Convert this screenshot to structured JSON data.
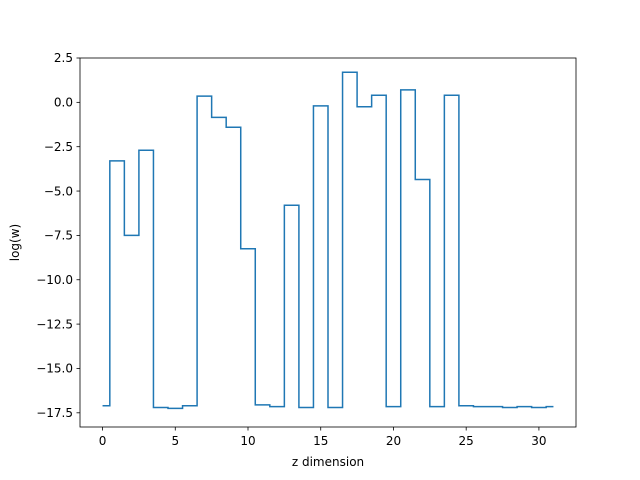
{
  "chart_data": {
    "type": "line",
    "drawstyle": "steps-mid",
    "title": "",
    "xlabel": "z dimension",
    "ylabel": "log(w)",
    "xlim": [
      -1.55,
      32.55
    ],
    "ylim": [
      -18.3,
      2.5
    ],
    "xticks": [
      0,
      5,
      10,
      15,
      20,
      25,
      30
    ],
    "xtick_labels": [
      "0",
      "5",
      "10",
      "15",
      "20",
      "25",
      "30"
    ],
    "yticks": [
      2.5,
      0.0,
      -2.5,
      -5.0,
      -7.5,
      -10.0,
      -12.5,
      -15.0,
      -17.5
    ],
    "ytick_labels": [
      "2.5",
      "0.0",
      "−2.5",
      "−5.0",
      "−7.5",
      "−10.0",
      "−12.5",
      "−15.0",
      "−17.5"
    ],
    "grid": false,
    "legend": "none",
    "series": [
      {
        "color": "#1f77b4",
        "x": [
          0,
          1,
          2,
          3,
          4,
          5,
          6,
          7,
          8,
          9,
          10,
          11,
          12,
          13,
          14,
          15,
          16,
          17,
          18,
          19,
          20,
          21,
          22,
          23,
          24,
          25,
          26,
          27,
          28,
          29,
          30,
          31
        ],
        "values": [
          -17.1,
          -3.3,
          -7.5,
          -2.7,
          -17.2,
          -17.25,
          -17.1,
          0.35,
          -0.85,
          -1.4,
          -8.25,
          -17.05,
          -17.15,
          -5.8,
          -17.2,
          -0.2,
          -17.2,
          1.7,
          -0.25,
          0.4,
          -17.15,
          0.7,
          -4.35,
          -17.15,
          0.4,
          -17.1,
          -17.15,
          -17.15,
          -17.2,
          -17.15,
          -17.2,
          -17.15
        ]
      }
    ]
  }
}
